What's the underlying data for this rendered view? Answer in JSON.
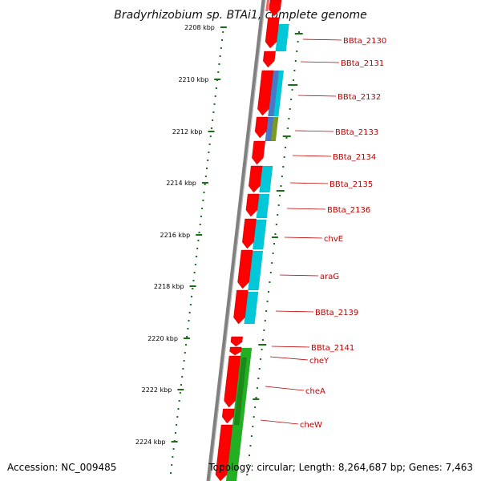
{
  "title": "Bradyrhizobium sp. BTAi1, complete genome",
  "accession": "Accession: NC_009485",
  "topology": "Topology: circular; Length: 8,264,687 bp; Genes: 7,463",
  "scale": {
    "unit": "kbp",
    "ticks": [
      "2208 kbp",
      "2210 kbp",
      "2212 kbp",
      "2214 kbp",
      "2216 kbp",
      "2218 kbp",
      "2220 kbp",
      "2222 kbp",
      "2224 kbp"
    ]
  },
  "genes": [
    "BBta_2130",
    "BBta_2131",
    "BBta_2132",
    "BBta_2133",
    "BBta_2134",
    "BBta_2135",
    "BBta_2136",
    "chvE",
    "araG",
    "BBta_2139",
    "BBta_2141",
    "cheY",
    "cheA",
    "cheW"
  ],
  "colors": {
    "forward_gene": "#ff0000",
    "reverse_gene": "#ff0000",
    "cog_cyan": "#00c8d8",
    "cog_blue": "#4a78c8",
    "cog_olive": "#7a9a20",
    "cog_green": "#22b022",
    "scale_tick": "#1a6e1a",
    "backbone": "#808080",
    "label_text": "#c00000"
  }
}
